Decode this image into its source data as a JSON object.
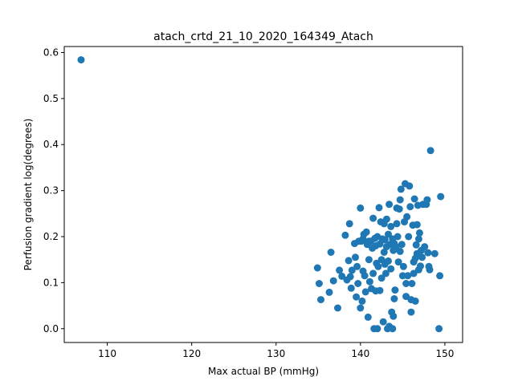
{
  "chart_data": {
    "type": "scatter",
    "title": "atach_crtd_21_10_2020_164349_Atach",
    "xlabel": "Max actual BP (mmHg)",
    "ylabel": "Perfusion gradient log(degrees)",
    "xlim": [
      104.9,
      152.1
    ],
    "ylim": [
      -0.03,
      0.613
    ],
    "xticks": [
      110,
      120,
      130,
      140,
      150
    ],
    "yticks": [
      0.0,
      0.1,
      0.2,
      0.3,
      0.4,
      0.5,
      0.6
    ],
    "xtick_labels": [
      "110",
      "120",
      "130",
      "140",
      "150"
    ],
    "ytick_labels": [
      "0.0",
      "0.1",
      "0.2",
      "0.3",
      "0.4",
      "0.5",
      "0.6"
    ],
    "grid": false,
    "marker_color": "#1f77b4",
    "points": [
      [
        106.9,
        0.584
      ],
      [
        134.9,
        0.132
      ],
      [
        135.1,
        0.098
      ],
      [
        135.3,
        0.063
      ],
      [
        136.3,
        0.079
      ],
      [
        136.5,
        0.166
      ],
      [
        136.8,
        0.104
      ],
      [
        137.3,
        0.045
      ],
      [
        137.5,
        0.127
      ],
      [
        137.8,
        0.114
      ],
      [
        138.2,
        0.203
      ],
      [
        138.4,
        0.106
      ],
      [
        138.6,
        0.148
      ],
      [
        138.7,
        0.228
      ],
      [
        138.8,
        0.113
      ],
      [
        138.9,
        0.088
      ],
      [
        139.0,
        0.127
      ],
      [
        139.3,
        0.185
      ],
      [
        139.4,
        0.155
      ],
      [
        139.5,
        0.069
      ],
      [
        139.6,
        0.135
      ],
      [
        139.7,
        0.098
      ],
      [
        139.8,
        0.19
      ],
      [
        140.0,
        0.262
      ],
      [
        140.0,
        0.045
      ],
      [
        140.1,
        0.19
      ],
      [
        140.2,
        0.06
      ],
      [
        140.3,
        0.125
      ],
      [
        140.3,
        0.195
      ],
      [
        140.4,
        0.205
      ],
      [
        140.5,
        0.115
      ],
      [
        140.6,
        0.08
      ],
      [
        140.7,
        0.21
      ],
      [
        140.8,
        0.183
      ],
      [
        140.9,
        0.025
      ],
      [
        141.0,
        0.19
      ],
      [
        141.0,
        0.15
      ],
      [
        141.1,
        0.102
      ],
      [
        141.2,
        0.19
      ],
      [
        141.3,
        0.087
      ],
      [
        141.4,
        0.175
      ],
      [
        141.5,
        0.12
      ],
      [
        141.5,
        0.24
      ],
      [
        141.6,
        0.0
      ],
      [
        141.7,
        0.196
      ],
      [
        141.8,
        0.18
      ],
      [
        141.8,
        0.082
      ],
      [
        141.9,
        0.142
      ],
      [
        142.0,
        0.0
      ],
      [
        142.0,
        0.2
      ],
      [
        142.1,
        0.135
      ],
      [
        142.2,
        0.263
      ],
      [
        142.3,
        0.083
      ],
      [
        142.3,
        0.184
      ],
      [
        142.4,
        0.232
      ],
      [
        142.5,
        0.15
      ],
      [
        142.5,
        0.11
      ],
      [
        142.6,
        0.195
      ],
      [
        142.7,
        0.015
      ],
      [
        142.8,
        0.166
      ],
      [
        142.8,
        0.228
      ],
      [
        142.9,
        0.14
      ],
      [
        142.9,
        0.193
      ],
      [
        143.0,
        0.12
      ],
      [
        143.1,
        0.238
      ],
      [
        143.1,
        0.178
      ],
      [
        143.2,
        0.0
      ],
      [
        143.3,
        0.147
      ],
      [
        143.3,
        0.205
      ],
      [
        143.4,
        0.27
      ],
      [
        143.4,
        0.005
      ],
      [
        143.5,
        0.183
      ],
      [
        143.6,
        0.222
      ],
      [
        143.6,
        0.13
      ],
      [
        143.7,
        0.036
      ],
      [
        143.8,
        0.0
      ],
      [
        143.8,
        0.195
      ],
      [
        143.9,
        0.17
      ],
      [
        143.9,
        0.027
      ],
      [
        144.0,
        0.065
      ],
      [
        144.0,
        0.185
      ],
      [
        144.1,
        0.084
      ],
      [
        144.2,
        0.178
      ],
      [
        144.3,
        0.262
      ],
      [
        144.3,
        0.228
      ],
      [
        144.4,
        0.2
      ],
      [
        144.5,
        0.145
      ],
      [
        144.6,
        0.26
      ],
      [
        144.7,
        0.28
      ],
      [
        144.7,
        0.168
      ],
      [
        144.8,
        0.303
      ],
      [
        144.9,
        0.183
      ],
      [
        145.0,
        0.115
      ],
      [
        145.1,
        0.135
      ],
      [
        145.2,
        0.232
      ],
      [
        145.3,
        0.315
      ],
      [
        145.4,
        0.07
      ],
      [
        145.4,
        0.098
      ],
      [
        145.5,
        0.243
      ],
      [
        145.6,
        0.115
      ],
      [
        145.7,
        0.2
      ],
      [
        145.8,
        0.31
      ],
      [
        145.9,
        0.265
      ],
      [
        146.0,
        0.063
      ],
      [
        146.0,
        0.036
      ],
      [
        146.1,
        0.098
      ],
      [
        146.2,
        0.225
      ],
      [
        146.3,
        0.145
      ],
      [
        146.3,
        0.12
      ],
      [
        146.4,
        0.282
      ],
      [
        146.5,
        0.153
      ],
      [
        146.5,
        0.06
      ],
      [
        146.6,
        0.182
      ],
      [
        146.7,
        0.226
      ],
      [
        146.7,
        0.163
      ],
      [
        146.8,
        0.268
      ],
      [
        146.9,
        0.195
      ],
      [
        146.9,
        0.128
      ],
      [
        147.0,
        0.208
      ],
      [
        147.1,
        0.136
      ],
      [
        147.2,
        0.17
      ],
      [
        147.3,
        0.155
      ],
      [
        147.4,
        0.27
      ],
      [
        147.6,
        0.178
      ],
      [
        147.8,
        0.27
      ],
      [
        147.9,
        0.28
      ],
      [
        148.0,
        0.165
      ],
      [
        148.1,
        0.135
      ],
      [
        148.2,
        0.128
      ],
      [
        148.3,
        0.387
      ],
      [
        148.8,
        0.163
      ],
      [
        149.3,
        0.0
      ],
      [
        149.4,
        0.115
      ],
      [
        149.5,
        0.287
      ]
    ]
  }
}
